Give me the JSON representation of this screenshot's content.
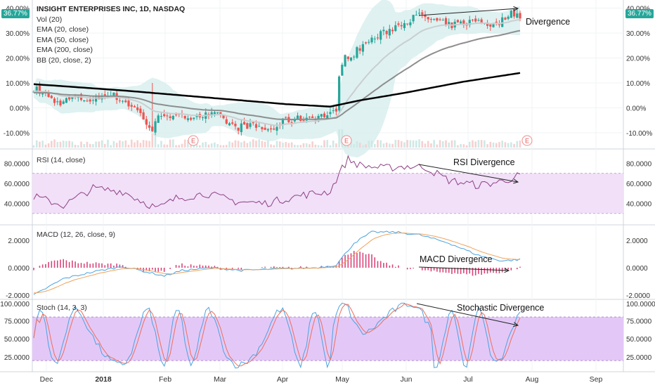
{
  "chart_data": {
    "type": "candlestick",
    "symbol_line": "INSIGHT ENTERPRISES INC, 1D, NASDAQ",
    "price_change_last": "36.77%",
    "legend": [
      "Vol (20)",
      "EMA (20, close)",
      "EMA (50, close)",
      "EMA (200, close)",
      "BB (20, close, 2)"
    ],
    "x_ticks": [
      "Dec",
      "2018",
      "Feb",
      "Mar",
      "Apr",
      "May",
      "Jun",
      "Jul",
      "Aug",
      "Sep"
    ],
    "price_axis": {
      "ticks": [
        "40.00%",
        "30.00%",
        "20.00%",
        "10.00%",
        "0.00%",
        "-10.00%"
      ],
      "range": [
        -10,
        40
      ]
    },
    "earnings_markers": [
      {
        "label": "E",
        "date": "2018-02-13"
      },
      {
        "label": "E",
        "date": "2018-05-03"
      },
      {
        "label": "E",
        "date": "2018-07-30"
      }
    ],
    "annotations": [
      "Divergence",
      "RSI Divergence",
      "MACD Divergence",
      "Stochastic Divergence"
    ],
    "rsi": {
      "label": "RSI (14, close)",
      "ticks": [
        "80.0000",
        "60.0000",
        "40.0000"
      ],
      "band": [
        30,
        70
      ]
    },
    "macd": {
      "label": "MACD (12, 26, close, 9)",
      "ticks": [
        "2.0000",
        "0.0000",
        "-2.0000"
      ]
    },
    "stoch": {
      "label": "Stoch (14, 3, 3)",
      "ticks": [
        "100.0000",
        "75.0000",
        "50.0000",
        "25.0000"
      ],
      "band": [
        20,
        80
      ]
    },
    "colors": {
      "up": "#26a69a",
      "down": "#ef5350",
      "ema20": "#c9ced1",
      "ema50": "#8e8e8e",
      "ema200": "#000000",
      "bb": "#d9efef",
      "rsi_line": "#8e3f84",
      "rsi_band": "#f1e0f8",
      "macd": "#4aa3df",
      "signal": "#f0a35d",
      "hist": "#d9457a",
      "stoch_k": "#4aa3df",
      "stoch_d": "#ef6e5b",
      "stoch_band": "#e3c8f7"
    }
  }
}
